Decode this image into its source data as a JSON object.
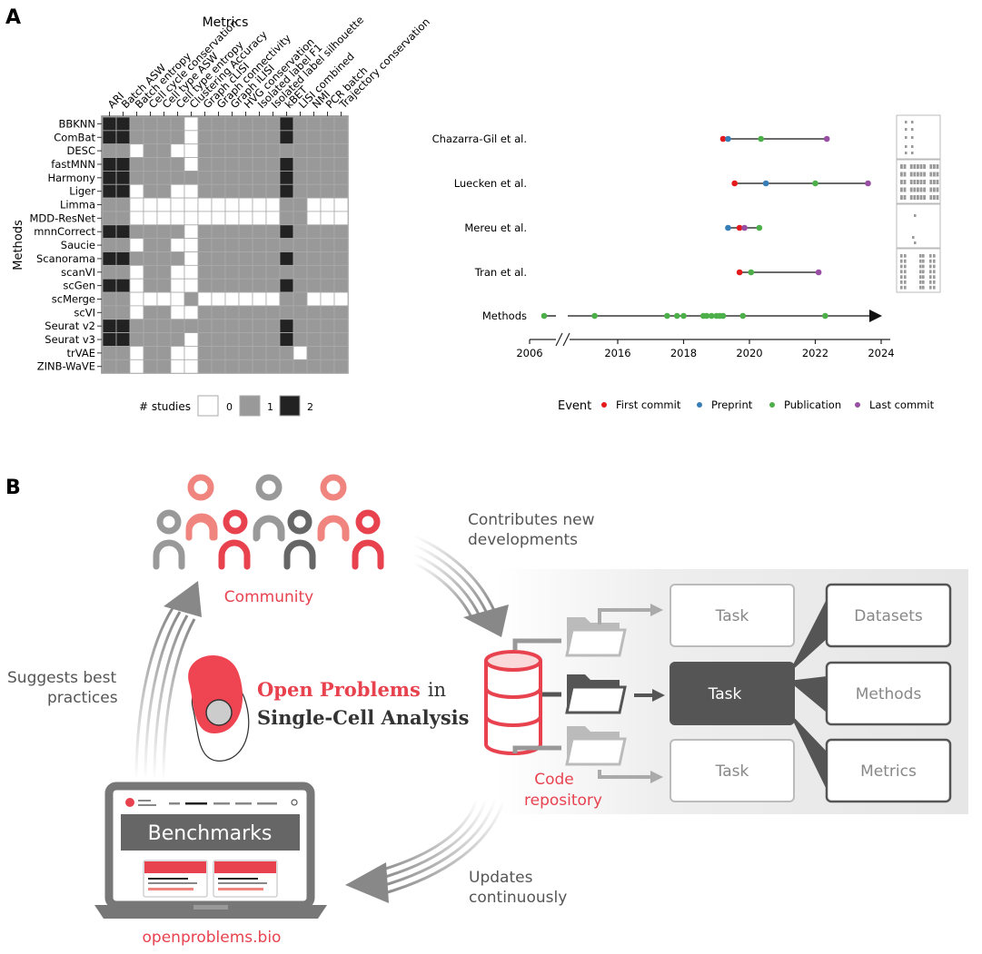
{
  "panel_a": {
    "label": "A",
    "heatmap": {
      "title": "Metrics",
      "ylabel": "Methods",
      "metrics": [
        "ARI",
        "Batch ASW",
        "Batch entropy",
        "Cell cycle conservation",
        "Cell type ASW",
        "Cell type entropy",
        "Clustering Accuracy",
        "Graph cLISI",
        "Graph connectivity",
        "Graph iLISI",
        "HVG conservation",
        "Isolated label F1",
        "Isolated label silhouette",
        "kBET",
        "LISI combined",
        "NMI",
        "PCR batch",
        "Trajectory conservation"
      ],
      "methods": [
        "BBKNN",
        "ComBat",
        "DESC",
        "fastMNN",
        "Harmony",
        "Liger",
        "Limma",
        "MDD-ResNet",
        "mnnCorrect",
        "Saucie",
        "Scanorama",
        "scanVI",
        "scGen",
        "scMerge",
        "scVI",
        "Seurat v2",
        "Seurat v3",
        "trVAE",
        "ZINB-WaVE"
      ],
      "values": [
        [
          2,
          2,
          1,
          1,
          1,
          1,
          0,
          1,
          1,
          1,
          1,
          1,
          1,
          2,
          1,
          1,
          1,
          1
        ],
        [
          2,
          2,
          1,
          1,
          1,
          1,
          0,
          1,
          1,
          1,
          1,
          1,
          1,
          2,
          1,
          1,
          1,
          1
        ],
        [
          1,
          1,
          0,
          1,
          1,
          0,
          0,
          1,
          1,
          1,
          1,
          1,
          1,
          1,
          1,
          1,
          1,
          1
        ],
        [
          2,
          2,
          1,
          1,
          1,
          1,
          0,
          1,
          1,
          1,
          1,
          1,
          1,
          2,
          1,
          1,
          1,
          1
        ],
        [
          2,
          2,
          1,
          1,
          1,
          1,
          1,
          1,
          1,
          1,
          1,
          1,
          1,
          2,
          1,
          1,
          1,
          1
        ],
        [
          2,
          2,
          0,
          1,
          1,
          0,
          0,
          1,
          1,
          1,
          1,
          1,
          1,
          2,
          1,
          1,
          1,
          1
        ],
        [
          1,
          1,
          0,
          0,
          0,
          0,
          0,
          0,
          0,
          0,
          0,
          0,
          0,
          1,
          1,
          0,
          0,
          0
        ],
        [
          1,
          1,
          0,
          0,
          0,
          0,
          0,
          0,
          0,
          0,
          0,
          0,
          0,
          1,
          1,
          0,
          0,
          0
        ],
        [
          2,
          2,
          1,
          1,
          1,
          1,
          0,
          1,
          1,
          1,
          1,
          1,
          1,
          2,
          1,
          1,
          1,
          1
        ],
        [
          1,
          1,
          0,
          1,
          1,
          0,
          0,
          1,
          1,
          1,
          1,
          1,
          1,
          1,
          1,
          1,
          1,
          1
        ],
        [
          2,
          2,
          1,
          1,
          1,
          1,
          0,
          1,
          1,
          1,
          1,
          1,
          1,
          2,
          1,
          1,
          1,
          1
        ],
        [
          1,
          1,
          0,
          1,
          1,
          0,
          0,
          1,
          1,
          1,
          1,
          1,
          1,
          1,
          1,
          1,
          1,
          1
        ],
        [
          2,
          2,
          0,
          1,
          1,
          0,
          0,
          1,
          1,
          1,
          1,
          1,
          1,
          2,
          1,
          1,
          1,
          1
        ],
        [
          1,
          1,
          0,
          0,
          0,
          0,
          1,
          0,
          0,
          0,
          0,
          0,
          0,
          1,
          1,
          0,
          0,
          0
        ],
        [
          1,
          1,
          0,
          1,
          1,
          0,
          0,
          1,
          1,
          1,
          1,
          1,
          1,
          1,
          1,
          1,
          1,
          1
        ],
        [
          2,
          2,
          1,
          1,
          1,
          1,
          1,
          1,
          1,
          1,
          1,
          1,
          1,
          2,
          1,
          1,
          1,
          1
        ],
        [
          2,
          2,
          1,
          1,
          1,
          1,
          0,
          1,
          1,
          1,
          1,
          1,
          1,
          2,
          1,
          1,
          1,
          1
        ],
        [
          1,
          1,
          0,
          1,
          1,
          0,
          0,
          1,
          1,
          1,
          1,
          1,
          1,
          1,
          0,
          1,
          1,
          1
        ],
        [
          1,
          1,
          0,
          1,
          1,
          0,
          0,
          1,
          1,
          1,
          1,
          1,
          1,
          1,
          1,
          1,
          1,
          1
        ]
      ],
      "legend_title": "# studies",
      "legend_levels": [
        "0",
        "1",
        "2"
      ],
      "legend_colors": [
        "#ffffff",
        "#999999",
        "#222222"
      ]
    },
    "timeline": {
      "studies": [
        {
          "name": "Chazarra-Gil et al.",
          "events": [
            {
              "type": "First commit",
              "x": 2019.2
            },
            {
              "type": "Preprint",
              "x": 2019.35
            },
            {
              "type": "Publication",
              "x": 2020.35
            },
            {
              "type": "Last commit",
              "x": 2022.35
            }
          ]
        },
        {
          "name": "Luecken et al.",
          "events": [
            {
              "type": "First commit",
              "x": 2019.55
            },
            {
              "type": "Preprint",
              "x": 2020.5
            },
            {
              "type": "Publication",
              "x": 2022.0
            },
            {
              "type": "Last commit",
              "x": 2023.6
            }
          ]
        },
        {
          "name": "Mereu et al.",
          "events": [
            {
              "type": "Preprint",
              "x": 2019.35
            },
            {
              "type": "First commit",
              "x": 2019.7
            },
            {
              "type": "Last commit",
              "x": 2019.85
            },
            {
              "type": "Publication",
              "x": 2020.3
            }
          ]
        },
        {
          "name": "Tran et al.",
          "events": [
            {
              "type": "First commit",
              "x": 2019.7
            },
            {
              "type": "Publication",
              "x": 2020.05
            },
            {
              "type": "Last commit",
              "x": 2022.1
            }
          ]
        }
      ],
      "methods_row": {
        "name": "Methods",
        "publications": [
          2006.4,
          2015.3,
          2017.5,
          2017.8,
          2018.0,
          2018.6,
          2018.7,
          2018.85,
          2019.0,
          2019.1,
          2019.2,
          2019.8,
          2022.3
        ]
      },
      "xticks": [
        "2006",
        "2016",
        "2018",
        "2020",
        "2022",
        "2024"
      ],
      "legend_title": "Event",
      "legend": [
        {
          "label": "First commit",
          "color": "#e41a1c"
        },
        {
          "label": "Preprint",
          "color": "#377eb8"
        },
        {
          "label": "Publication",
          "color": "#4daf4a"
        },
        {
          "label": "Last commit",
          "color": "#984ea3"
        }
      ]
    }
  },
  "panel_b": {
    "label": "B",
    "community_label": "Community",
    "contributes_label": [
      "Contributes new",
      "developments"
    ],
    "suggests_label": [
      "Suggests best",
      "practices"
    ],
    "updates_label": [
      "Updates",
      "continuously"
    ],
    "logo_title_bold": "Open Problems",
    "logo_title_in": "in",
    "logo_title_line2": "Single-Cell Analysis",
    "repo_label": [
      "Code",
      "repository"
    ],
    "task_labels": [
      "Task",
      "Task",
      "Task"
    ],
    "component_labels": [
      "Datasets",
      "Methods",
      "Metrics"
    ],
    "benchmarks_label": "Benchmarks",
    "website_label": "openproblems.bio",
    "accent_color": "#e8424f"
  }
}
